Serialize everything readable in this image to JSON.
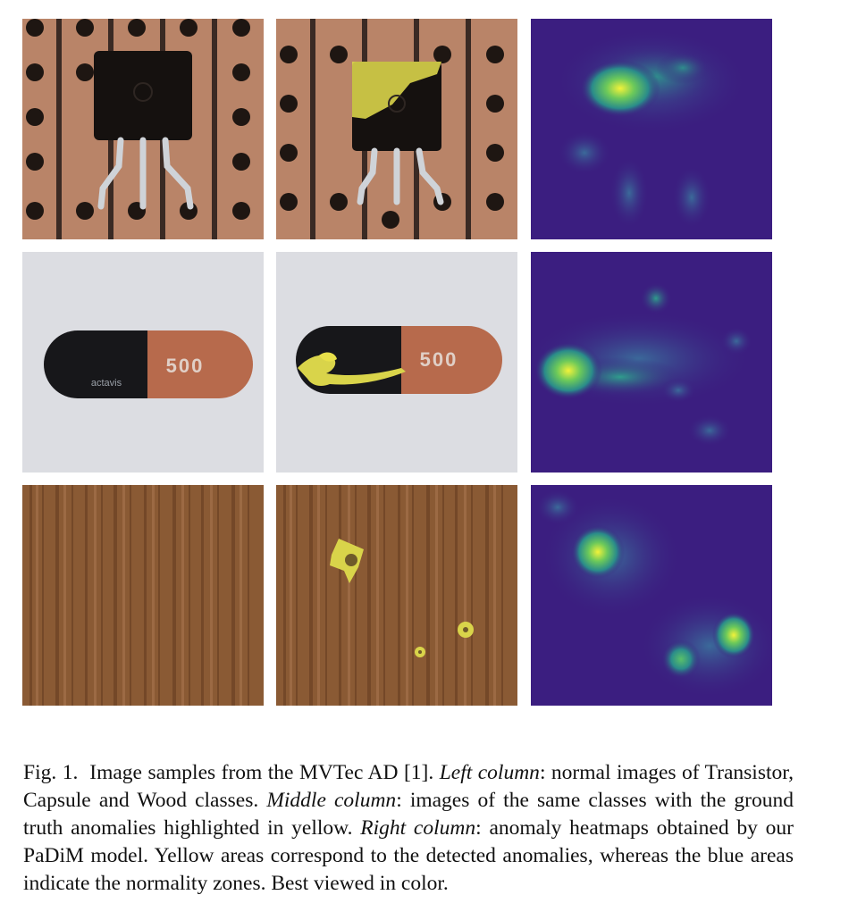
{
  "figure": {
    "panels": [
      {
        "row": "transistor",
        "column": "normal"
      },
      {
        "row": "transistor",
        "column": "ground-truth"
      },
      {
        "row": "transistor",
        "column": "heatmap"
      },
      {
        "row": "capsule",
        "column": "normal",
        "print": "500",
        "logo": "actavis"
      },
      {
        "row": "capsule",
        "column": "ground-truth",
        "print": "500"
      },
      {
        "row": "capsule",
        "column": "heatmap"
      },
      {
        "row": "wood",
        "column": "normal"
      },
      {
        "row": "wood",
        "column": "ground-truth"
      },
      {
        "row": "wood",
        "column": "heatmap"
      }
    ],
    "colors": {
      "anomaly_highlight": "#e8e04a",
      "heatmap_low": "#3b1e80",
      "heatmap_high": "#f2f23a",
      "copper_board": "#b98468",
      "wood": "#8a5a34"
    }
  },
  "caption": {
    "label": "Fig. 1.",
    "text_1": "Image samples from the MVTec AD [1]. ",
    "em_1": "Left column",
    "text_2": ": normal images of Transistor, Capsule and Wood classes. ",
    "em_2": "Middle column",
    "text_3": ": images of the same classes with the ground truth anomalies highlighted in yellow. ",
    "em_3": "Right column",
    "text_4": ": anomaly heatmaps obtained by our PaDiM model. Yellow areas correspond to the detected anomalies, whereas the blue areas indicate the normality zones. Best viewed in color."
  }
}
